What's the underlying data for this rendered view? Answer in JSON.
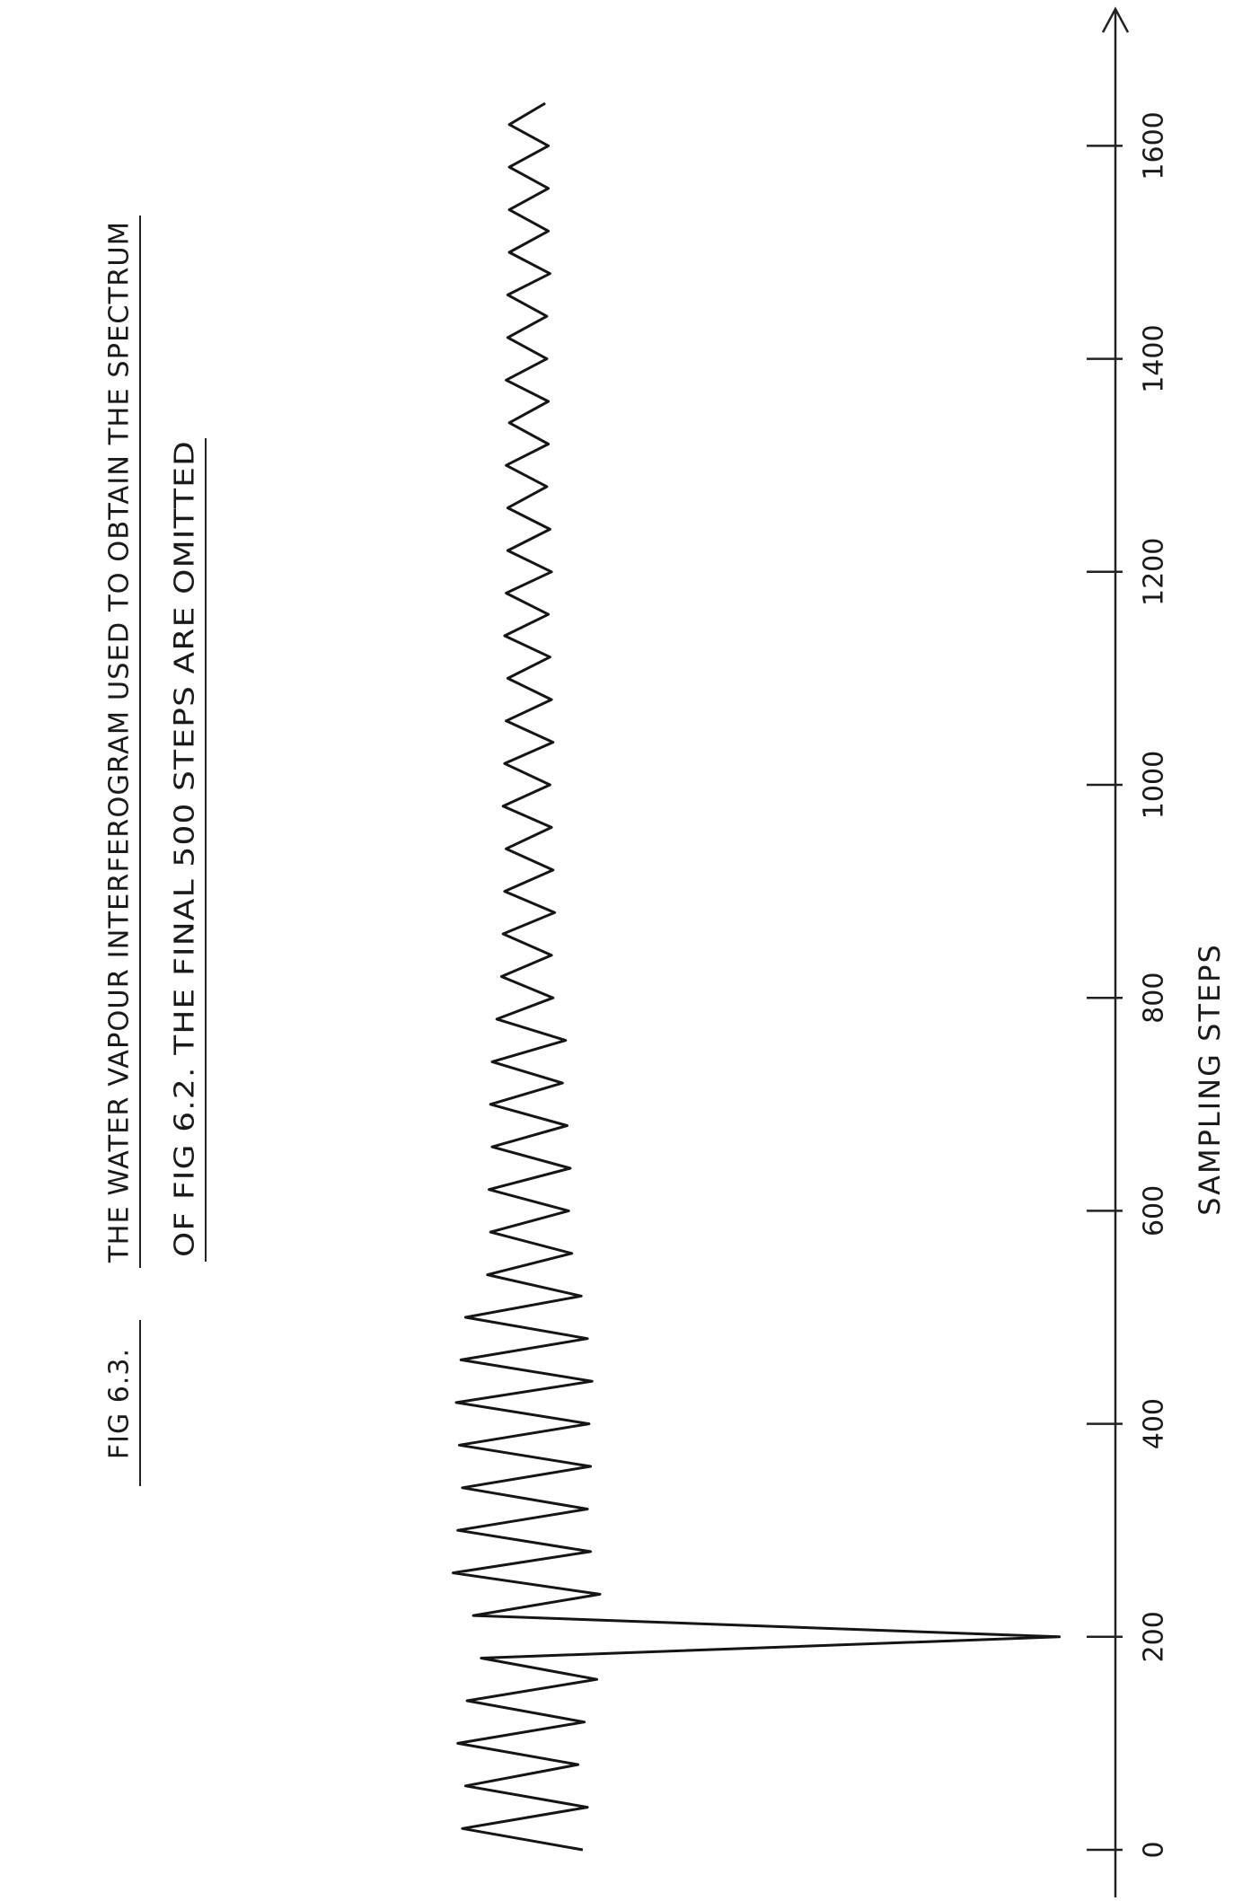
{
  "chart_data": {
    "type": "line",
    "title": "FIG 6.3.",
    "subtitle": "THE WATER VAPOUR INTERFEROGRAM USED TO OBTAIN THE SPECTRUM",
    "subtitle_line2": "OF FIG 6.2. THE FINAL 500 STEPS ARE OMITTED",
    "xlabel": "SAMPLING STEPS",
    "xlim": [
      0,
      1750
    ],
    "xticks": [
      0,
      200,
      400,
      600,
      800,
      1000,
      1200,
      1400,
      1600
    ],
    "color": "#151515",
    "x": [
      0,
      20,
      40,
      60,
      80,
      100,
      120,
      140,
      160,
      180,
      200,
      220,
      240,
      260,
      280,
      300,
      320,
      340,
      360,
      380,
      400,
      420,
      440,
      460,
      480,
      500,
      520,
      540,
      560,
      580,
      600,
      620,
      640,
      660,
      680,
      700,
      720,
      740,
      760,
      780,
      800,
      820,
      840,
      860,
      880,
      900,
      920,
      940,
      960,
      980,
      1000,
      1020,
      1040,
      1060,
      1080,
      1100,
      1120,
      1140,
      1160,
      1180,
      1200,
      1220,
      1240,
      1260,
      1280,
      1300,
      1320,
      1340,
      1360,
      1380,
      1400,
      1420,
      1440,
      1460,
      1480,
      1500,
      1520,
      1540,
      1560,
      1580,
      1600,
      1620,
      1640
    ],
    "values": [
      3.5,
      -4.2,
      3.8,
      -4.0,
      3.2,
      -4.5,
      3.6,
      -3.9,
      4.4,
      -3.0,
      34,
      -3.5,
      4.6,
      -4.8,
      4.0,
      -4.5,
      3.8,
      -4.2,
      4.0,
      -4.4,
      3.9,
      -4.6,
      4.1,
      -4.3,
      3.8,
      -4.0,
      3.4,
      -2.6,
      2.8,
      -2.4,
      2.6,
      -2.5,
      2.7,
      -2.3,
      2.5,
      -2.4,
      2.2,
      -2.3,
      2.4,
      -2.0,
      1.6,
      -1.7,
      1.5,
      -1.6,
      1.7,
      -1.5,
      1.6,
      -1.4,
      1.5,
      -1.6,
      1.4,
      -1.5,
      1.6,
      -1.4,
      1.5,
      -1.3,
      1.4,
      -1.5,
      1.3,
      -1.4,
      1.5,
      -1.3,
      1.4,
      -1.3,
      1.2,
      -1.4,
      1.3,
      -1.2,
      1.3,
      -1.4,
      1.2,
      -1.3,
      1.2,
      -1.3,
      1.4,
      -1.2,
      1.3,
      -1.2,
      1.3,
      -1.2,
      1.3,
      -1.2,
      1.1
    ]
  }
}
